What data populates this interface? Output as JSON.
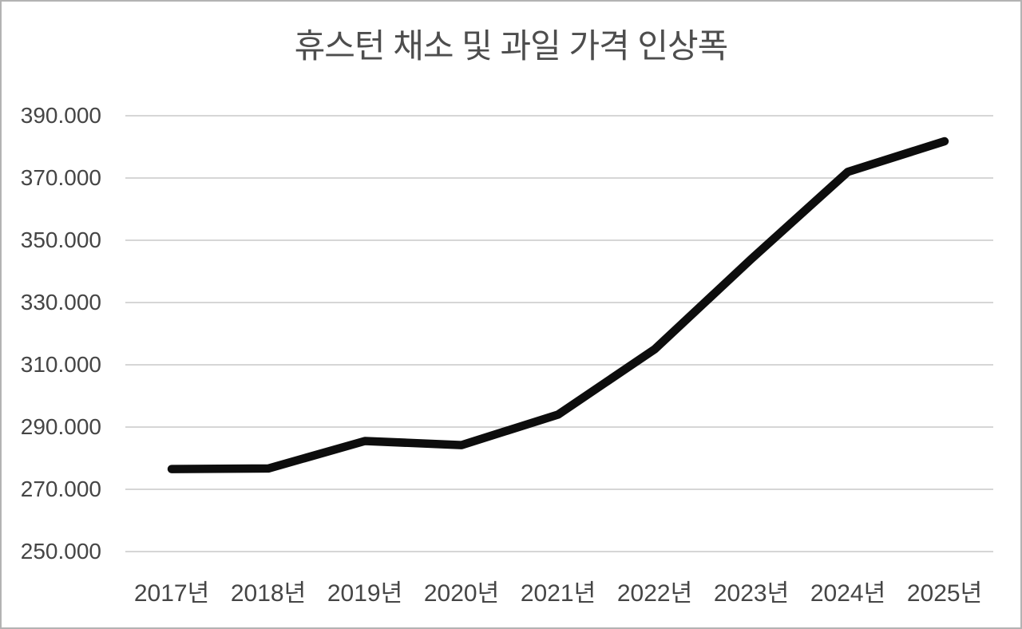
{
  "window": {
    "background_color": "#ffffff",
    "border_color": "#b3b3b3"
  },
  "chart_data": {
    "type": "line",
    "title": "휴스턴 채소 및 과일 가격 인상폭",
    "categories": [
      "2017년",
      "2018년",
      "2019년",
      "2020년",
      "2021년",
      "2022년",
      "2023년",
      "2024년",
      "2025년"
    ],
    "series": [
      {
        "name": "휴스턴 채소 및 과일 가격",
        "values": [
          276500,
          276700,
          285500,
          284200,
          294000,
          315000,
          344000,
          372000,
          381800
        ]
      }
    ],
    "xlabel": "",
    "ylabel": "",
    "ylim": [
      250000,
      390000
    ],
    "y_tick_step": 20000,
    "y_tick_labels": [
      "390.000",
      "370.000",
      "350.000",
      "330.000",
      "310.000",
      "290.000",
      "270.000",
      "250.000"
    ],
    "x_tick_labels": [
      "2017년",
      "2018년",
      "2019년",
      "2020년",
      "2021년",
      "2022년",
      "2023년",
      "2024년",
      "2025년"
    ],
    "grid": "horizontal",
    "legend": "none",
    "line_color": "#0d0d0d",
    "gridline_color": "#d6d6d6",
    "axis_text_color": "#454545",
    "title_color": "#4d4d4d"
  }
}
